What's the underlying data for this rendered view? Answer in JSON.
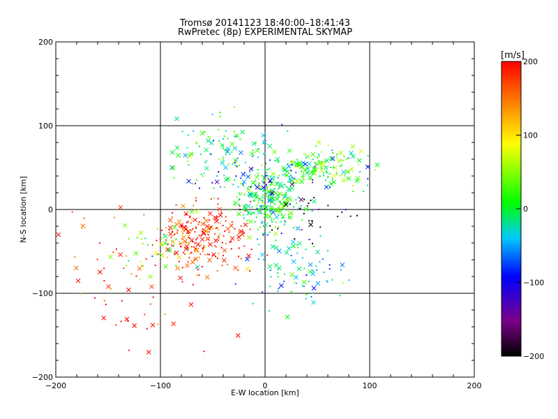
{
  "chart_data": {
    "type": "scatter",
    "title_line1": "Tromsø 20141123 18:40:00–18:41:43",
    "title_line2": "RwPretec (8p) EXPERIMENTAL SKYMAP",
    "xlabel": "E-W location [km]",
    "ylabel": "N-S location [km]",
    "xlim": [
      -200,
      200
    ],
    "ylim": [
      -200,
      200
    ],
    "xticks": [
      -200,
      -100,
      0,
      100,
      200
    ],
    "yticks": [
      -200,
      -100,
      0,
      100,
      200
    ],
    "xtick_labels": [
      "−200",
      "−100",
      "0",
      "100",
      "200"
    ],
    "ytick_labels": [
      "−200",
      "−100",
      "0",
      "100",
      "200"
    ],
    "grid_lines": [
      -100,
      0,
      100
    ],
    "marker_types": [
      "cross",
      "small-dot"
    ],
    "colorbar": {
      "label": "[m/s]",
      "range": [
        -200,
        200
      ],
      "ticks": [
        200,
        100,
        0,
        -100,
        -200
      ],
      "tick_labels": [
        "200",
        "100",
        "0",
        "−100",
        "−200"
      ],
      "colors": [
        "#000000",
        "#7a0088",
        "#0000ff",
        "#00c8ff",
        "#00ff00",
        "#ffff00",
        "#ff0000"
      ]
    },
    "clusters": [
      {
        "name": "south-west red region",
        "x": -60,
        "y": -35,
        "spread_x": 22,
        "spread_y": 18,
        "velocity": 180,
        "count": 240
      },
      {
        "name": "central cyan-green core",
        "x": 2,
        "y": 12,
        "spread_x": 16,
        "spread_y": 18,
        "velocity": 0,
        "count": 260
      },
      {
        "name": "north-east green band",
        "x": 55,
        "y": 52,
        "spread_x": 22,
        "spread_y": 12,
        "velocity": 10,
        "count": 160
      },
      {
        "name": "north-west green band",
        "x": -40,
        "y": 70,
        "spread_x": 25,
        "spread_y": 20,
        "velocity": -10,
        "count": 110
      },
      {
        "name": "south cyan spread",
        "x": 30,
        "y": -70,
        "spread_x": 25,
        "spread_y": 25,
        "velocity": -40,
        "count": 90
      },
      {
        "name": "central-north blue patch",
        "x": -10,
        "y": 40,
        "spread_x": 30,
        "spread_y": 10,
        "velocity": -100,
        "count": 40
      },
      {
        "name": "east dark patch",
        "x": 35,
        "y": 0,
        "spread_x": 30,
        "spread_y": 15,
        "velocity": -190,
        "count": 30
      },
      {
        "name": "far south-west scattered red",
        "x": -130,
        "y": -80,
        "spread_x": 35,
        "spread_y": 50,
        "velocity": 190,
        "count": 60
      },
      {
        "name": "west green arm",
        "x": -100,
        "y": -50,
        "spread_x": 20,
        "spread_y": 15,
        "velocity": 30,
        "count": 40
      }
    ]
  }
}
